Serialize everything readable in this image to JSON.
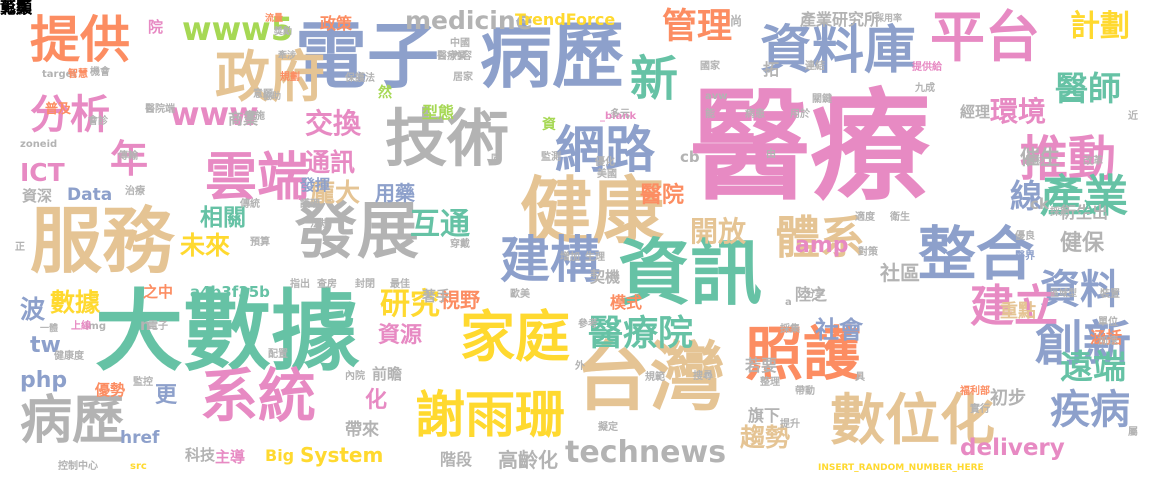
{
  "palette": {
    "pink": "#e78ac3",
    "blue": "#8da0cb",
    "tan": "#e5c494",
    "grey": "#b3b3b3",
    "orange": "#fc8d62",
    "green": "#a6d854",
    "teal": "#66c2a5",
    "yellow": "#ffd92f"
  },
  "words": [
    {
      "text": "醫療",
      "c": "pink"
    },
    {
      "text": "大數據",
      "c": "teal"
    },
    {
      "text": "服務",
      "c": "tan"
    },
    {
      "text": "健康",
      "c": "tan"
    },
    {
      "text": "台灣",
      "c": "tan"
    },
    {
      "text": "電子",
      "c": "blue"
    },
    {
      "text": "病歷",
      "c": "blue"
    },
    {
      "text": "技術",
      "c": "grey"
    },
    {
      "text": "發展",
      "c": "grey"
    },
    {
      "text": "資訊",
      "c": "teal"
    },
    {
      "text": "整合",
      "c": "blue"
    },
    {
      "text": "平台",
      "c": "pink"
    },
    {
      "text": "政府",
      "c": "tan"
    },
    {
      "text": "提供",
      "c": "orange"
    },
    {
      "text": "雲端",
      "c": "pink"
    },
    {
      "text": "系統",
      "c": "pink"
    },
    {
      "text": "照護",
      "c": "orange"
    },
    {
      "text": "家庭",
      "c": "yellow"
    },
    {
      "text": "數位化",
      "c": "tan"
    },
    {
      "text": "資料庫",
      "c": "blue"
    },
    {
      "text": "病歷",
      "c": "grey"
    },
    {
      "text": "謝雨珊",
      "c": "yellow"
    },
    {
      "text": "建構",
      "c": "blue"
    },
    {
      "text": "網路",
      "c": "blue"
    },
    {
      "text": "創新",
      "c": "blue"
    },
    {
      "text": "推動",
      "c": "pink"
    },
    {
      "text": "產業",
      "c": "teal"
    },
    {
      "text": "資料",
      "c": "blue"
    },
    {
      "text": "體系",
      "c": "tan"
    },
    {
      "text": "建立",
      "c": "pink"
    },
    {
      "text": "疾病",
      "c": "blue"
    },
    {
      "text": "醫療院",
      "c": "teal"
    },
    {
      "text": "分析",
      "c": "pink"
    },
    {
      "text": "新",
      "c": "teal"
    },
    {
      "text": "年",
      "c": "pink"
    },
    {
      "text": "管理",
      "c": "orange"
    },
    {
      "text": "醫師",
      "c": "teal"
    },
    {
      "text": "遠端",
      "c": "teal"
    },
    {
      "text": "www5",
      "c": "green"
    },
    {
      "text": "www",
      "c": "pink"
    },
    {
      "text": "technews",
      "c": "grey"
    },
    {
      "text": "medicine",
      "c": "grey"
    },
    {
      "text": "計劃",
      "c": "yellow"
    },
    {
      "text": "環境",
      "c": "pink"
    },
    {
      "text": "未來",
      "c": "yellow"
    },
    {
      "text": "趨勢",
      "c": "tan"
    },
    {
      "text": "研究",
      "c": "yellow"
    },
    {
      "text": "交換",
      "c": "pink"
    },
    {
      "text": "通訊",
      "c": "pink"
    },
    {
      "text": "數據",
      "c": "yellow"
    },
    {
      "text": "互通",
      "c": "teal"
    },
    {
      "text": "相關",
      "c": "teal"
    },
    {
      "text": "開放",
      "c": "tan"
    },
    {
      "text": "醫院",
      "c": "orange"
    },
    {
      "text": "資源",
      "c": "pink"
    },
    {
      "text": "社會",
      "c": "blue"
    },
    {
      "text": "健保",
      "c": "grey"
    },
    {
      "text": "delivery",
      "c": "pink"
    },
    {
      "text": "System",
      "c": "yellow"
    },
    {
      "text": "ICT",
      "c": "pink"
    },
    {
      "text": "php",
      "c": "blue"
    },
    {
      "text": "tw",
      "c": "blue"
    },
    {
      "text": "amp",
      "c": "pink"
    },
    {
      "text": "催生",
      "c": "grey"
    },
    {
      "text": "線",
      "c": "blue"
    },
    {
      "text": "龐大",
      "c": "tan"
    },
    {
      "text": "用藥",
      "c": "blue"
    },
    {
      "text": "波",
      "c": "blue"
    },
    {
      "text": "更",
      "c": "blue"
    },
    {
      "text": "化",
      "c": "pink"
    },
    {
      "text": "社區",
      "c": "grey"
    },
    {
      "text": "重點",
      "c": "tan"
    },
    {
      "text": "TrendForce",
      "c": "yellow"
    },
    {
      "text": "產業研究所",
      "c": "grey"
    },
    {
      "text": "a4b3f35b",
      "c": "teal"
    },
    {
      "text": "衍生出",
      "c": "grey"
    },
    {
      "text": "涵括",
      "c": "orange"
    },
    {
      "text": "視野",
      "c": "orange"
    },
    {
      "text": "初步",
      "c": "grey"
    },
    {
      "text": "高齡化",
      "c": "grey"
    },
    {
      "text": "Big",
      "c": "yellow"
    },
    {
      "text": "href",
      "c": "blue"
    },
    {
      "text": "Data",
      "c": "blue"
    },
    {
      "text": "資深",
      "c": "grey"
    },
    {
      "text": "院",
      "c": "pink"
    },
    {
      "text": "政策",
      "c": "orange"
    },
    {
      "text": "商業",
      "c": "grey"
    },
    {
      "text": "前瞻",
      "c": "grey"
    },
    {
      "text": "帶來",
      "c": "grey"
    },
    {
      "text": "模式",
      "c": "orange"
    },
    {
      "text": "優勢",
      "c": "orange"
    },
    {
      "text": "主導",
      "c": "pink"
    },
    {
      "text": "科技",
      "c": "grey"
    },
    {
      "text": "階段",
      "c": "grey"
    },
    {
      "text": "若要",
      "c": "grey"
    },
    {
      "text": "旗下",
      "c": "grey"
    },
    {
      "text": "陸之",
      "c": "grey"
    },
    {
      "text": "型態",
      "c": "green"
    },
    {
      "text": "契機",
      "c": "grey"
    },
    {
      "text": "發揮",
      "c": "blue"
    },
    {
      "text": "之中",
      "c": "orange"
    },
    {
      "text": "經理",
      "c": "grey"
    },
    {
      "text": "入",
      "c": "teal"
    },
    {
      "text": "cb",
      "c": "grey"
    },
    {
      "text": "ck",
      "c": "grey"
    },
    {
      "text": "zoneid",
      "c": "grey"
    },
    {
      "text": "target",
      "c": "grey"
    },
    {
      "text": "INSERT_RANDOM_NUMBER_HERE",
      "c": "yellow"
    },
    {
      "text": "_blank",
      "c": "pink"
    },
    {
      "text": "普及",
      "c": "orange"
    },
    {
      "text": "控制中心",
      "c": "grey"
    },
    {
      "text": "src",
      "c": "yellow"
    },
    {
      "text": "img",
      "c": "grey"
    },
    {
      "text": "一體",
      "c": "grey"
    },
    {
      "text": "著手",
      "c": "grey"
    },
    {
      "text": "歐美",
      "c": "grey"
    },
    {
      "text": "拓",
      "c": "grey"
    },
    {
      "text": "尚",
      "c": "grey"
    },
    {
      "text": "然",
      "c": "green"
    },
    {
      "text": "資",
      "c": "green"
    },
    {
      "text": "區域型",
      "c": "grey"
    },
    {
      "text": "九成",
      "c": "grey"
    },
    {
      "text": "採用率",
      "c": "grey"
    },
    {
      "text": "提供給",
      "c": "pink"
    },
    {
      "text": "流量",
      "c": "orange"
    },
    {
      "text": "智慧",
      "c": "orange"
    },
    {
      "text": "機會",
      "c": "grey"
    },
    {
      "text": "規劃",
      "c": "orange"
    },
    {
      "text": "衛生",
      "c": "grey"
    },
    {
      "text": "醫界",
      "c": "blue"
    },
    {
      "text": "福利部",
      "c": "orange"
    },
    {
      "text": "單位",
      "c": "grey"
    },
    {
      "text": "加速",
      "c": "grey"
    },
    {
      "text": "器材",
      "c": "grey"
    },
    {
      "text": "改革",
      "c": "grey"
    },
    {
      "text": "保護法",
      "c": "grey"
    },
    {
      "text": "實施",
      "c": "grey"
    },
    {
      "text": "電子",
      "c": "grey"
    },
    {
      "text": "上線",
      "c": "pink"
    },
    {
      "text": "健康度",
      "c": "grey"
    },
    {
      "text": "監控",
      "c": "grey"
    },
    {
      "text": "治療",
      "c": "grey"
    },
    {
      "text": "擬定",
      "c": "grey"
    },
    {
      "text": "參考",
      "c": "grey"
    },
    {
      "text": "預算",
      "c": "grey"
    },
    {
      "text": "傳統",
      "c": "grey"
    },
    {
      "text": "內容",
      "c": "grey"
    },
    {
      "text": "國家",
      "c": "grey"
    },
    {
      "text": "連結",
      "c": "grey"
    },
    {
      "text": "多元",
      "c": "grey"
    },
    {
      "text": "優化",
      "c": "grey"
    },
    {
      "text": "美國",
      "c": "grey"
    },
    {
      "text": "穿戴",
      "c": "grey"
    },
    {
      "text": "增加",
      "c": "grey"
    },
    {
      "text": "生理",
      "c": "grey"
    },
    {
      "text": "查房",
      "c": "grey"
    },
    {
      "text": "封閉",
      "c": "grey"
    },
    {
      "text": "最佳",
      "c": "grey"
    },
    {
      "text": "指出",
      "c": "grey"
    },
    {
      "text": "分享",
      "c": "grey"
    },
    {
      "text": "採集",
      "c": "grey"
    },
    {
      "text": "規範",
      "c": "grey"
    },
    {
      "text": "搜尋",
      "c": "grey"
    },
    {
      "text": "整理",
      "c": "grey"
    },
    {
      "text": "實行",
      "c": "grey"
    },
    {
      "text": "帶動",
      "c": "grey"
    },
    {
      "text": "提升",
      "c": "grey"
    },
    {
      "text": "配置",
      "c": "grey"
    },
    {
      "text": "內院",
      "c": "grey"
    },
    {
      "text": "獎勵",
      "c": "grey"
    },
    {
      "text": "牽涉",
      "c": "grey"
    },
    {
      "text": "協助",
      "c": "grey"
    },
    {
      "text": "會診",
      "c": "grey"
    },
    {
      "text": "意願",
      "c": "grey"
    },
    {
      "text": "醫療業",
      "c": "grey"
    },
    {
      "text": "中國",
      "c": "grey"
    },
    {
      "text": "居家",
      "c": "grey"
    },
    {
      "text": "監測",
      "c": "grey"
    },
    {
      "text": "護理",
      "c": "grey"
    },
    {
      "text": "法規",
      "c": "grey"
    },
    {
      "text": "傳輸",
      "c": "grey"
    },
    {
      "text": "病患",
      "c": "grey"
    },
    {
      "text": "用於",
      "c": "grey"
    },
    {
      "text": "適度",
      "c": "grey"
    },
    {
      "text": "對策",
      "c": "grey"
    },
    {
      "text": "優良",
      "c": "grey"
    },
    {
      "text": "裝置",
      "c": "grey"
    },
    {
      "text": "採用",
      "c": "grey"
    },
    {
      "text": "近",
      "c": "grey"
    },
    {
      "text": "屬",
      "c": "grey"
    },
    {
      "text": "具",
      "c": "grey"
    },
    {
      "text": "外",
      "c": "grey"
    },
    {
      "text": "正",
      "c": "grey"
    },
    {
      "text": "n",
      "c": "grey"
    },
    {
      "text": "a",
      "c": "grey"
    },
    {
      "text": "avw",
      "c": "grey"
    },
    {
      "text": "關鍵",
      "c": "grey"
    },
    {
      "text": "醫院端",
      "c": "grey"
    },
    {
      "text": "能",
      "c": "grey"
    },
    {
      "text": "同",
      "c": "grey"
    },
    {
      "text": "由",
      "c": "grey"
    },
    {
      "text": "彰顯",
      "c": "grey"
    },
    {
      "text": "蒐集",
      "c": "grey"
    }
  ]
}
